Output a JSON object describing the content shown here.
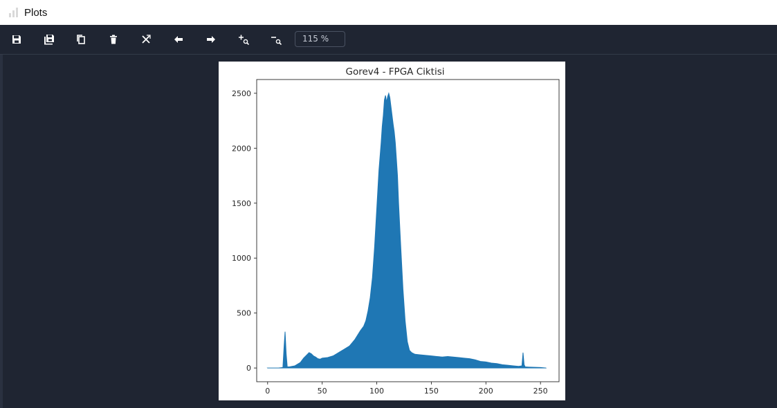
{
  "window": {
    "title": "Plots"
  },
  "toolbar": {
    "buttons": [
      {
        "name": "save-button",
        "icon": "save-icon"
      },
      {
        "name": "save-all-button",
        "icon": "save-all-icon"
      },
      {
        "name": "copy-button",
        "icon": "copy-icon"
      },
      {
        "name": "delete-button",
        "icon": "trash-icon"
      },
      {
        "name": "delete-all-button",
        "icon": "close-all-icon"
      },
      {
        "name": "previous-plot-button",
        "icon": "arrow-left-icon"
      },
      {
        "name": "next-plot-button",
        "icon": "arrow-right-icon"
      },
      {
        "name": "zoom-in-button",
        "icon": "zoom-in-icon"
      },
      {
        "name": "zoom-out-button",
        "icon": "zoom-out-icon"
      }
    ],
    "zoom_value": "115 %"
  },
  "chart_data": {
    "type": "area",
    "title": "Gorev4 - FPGA Ciktisi",
    "xlabel": "",
    "ylabel": "",
    "xlim": [
      -10,
      267
    ],
    "ylim": [
      -125,
      2625
    ],
    "xticks": [
      "0",
      "50",
      "100",
      "150",
      "200",
      "250"
    ],
    "yticks": [
      "0",
      "500",
      "1000",
      "1500",
      "2000",
      "2500"
    ],
    "color": "#1f77b4",
    "series": [
      {
        "x": [
          0,
          5,
          10,
          14,
          15,
          16,
          17,
          18,
          20,
          25,
          30,
          33,
          36,
          38,
          40,
          42,
          44,
          46,
          48,
          50,
          55,
          60,
          65,
          70,
          75,
          80,
          85,
          88,
          90,
          92,
          94,
          96,
          98,
          100,
          102,
          104,
          105,
          106,
          107,
          108,
          109,
          110,
          111,
          112,
          113,
          114,
          115,
          116,
          117,
          118,
          119,
          120,
          122,
          124,
          126,
          128,
          130,
          132,
          135,
          140,
          145,
          150,
          155,
          160,
          165,
          170,
          175,
          180,
          185,
          190,
          195,
          200,
          205,
          210,
          215,
          220,
          225,
          230,
          233,
          234,
          235,
          236,
          240,
          245,
          250,
          255
        ],
        "y": [
          0,
          0,
          0,
          5,
          180,
          330,
          130,
          10,
          10,
          20,
          50,
          90,
          120,
          140,
          130,
          110,
          100,
          85,
          80,
          90,
          95,
          110,
          140,
          170,
          200,
          260,
          340,
          380,
          430,
          520,
          640,
          820,
          1100,
          1450,
          1800,
          2050,
          2200,
          2300,
          2440,
          2480,
          2420,
          2470,
          2500,
          2460,
          2380,
          2300,
          2220,
          2150,
          2050,
          1900,
          1750,
          1500,
          1100,
          720,
          430,
          240,
          160,
          140,
          125,
          120,
          115,
          110,
          105,
          100,
          105,
          100,
          95,
          90,
          85,
          75,
          60,
          55,
          45,
          40,
          30,
          25,
          20,
          15,
          20,
          140,
          30,
          10,
          8,
          6,
          5,
          0
        ]
      }
    ]
  }
}
